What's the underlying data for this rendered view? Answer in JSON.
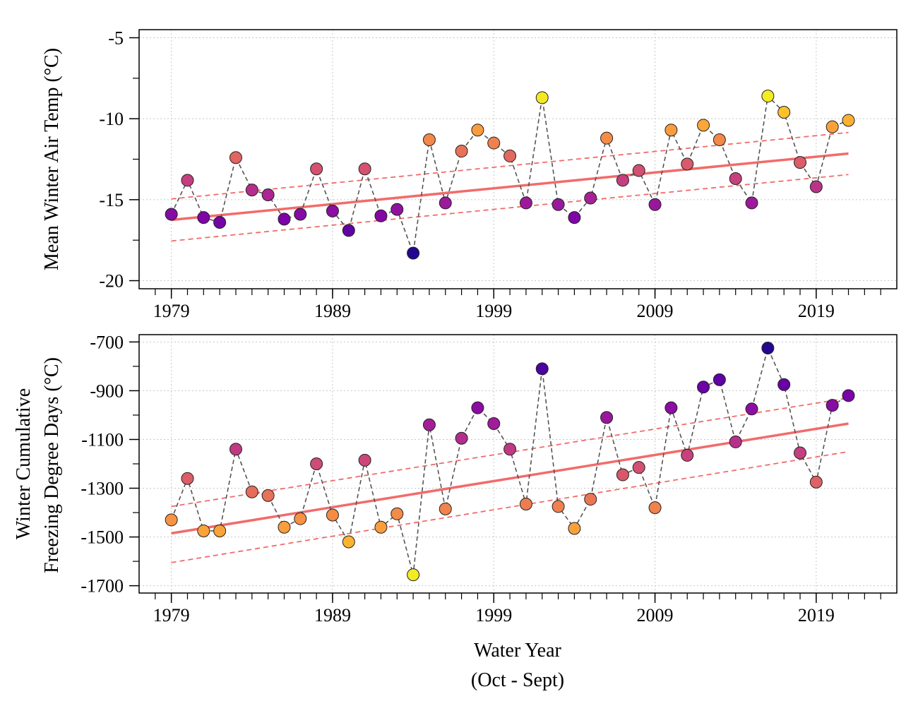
{
  "chart_data": [
    {
      "type": "scatter",
      "title": "",
      "xlabel": "",
      "ylabel": "Mean Winter Air Temp (°C)",
      "xlim": [
        1977,
        2024
      ],
      "ylim": [
        -20.5,
        -4.5
      ],
      "x_ticks": [
        1979,
        1989,
        1999,
        2009,
        2019
      ],
      "y_ticks": [
        -20,
        -15,
        -10,
        -5
      ],
      "grid": true,
      "x": [
        1979,
        1980,
        1981,
        1982,
        1983,
        1984,
        1985,
        1986,
        1987,
        1988,
        1989,
        1990,
        1991,
        1992,
        1993,
        1994,
        1995,
        1996,
        1997,
        1998,
        1999,
        2000,
        2001,
        2002,
        2003,
        2004,
        2005,
        2006,
        2007,
        2008,
        2009,
        2010,
        2011,
        2012,
        2013,
        2014,
        2015,
        2016,
        2017,
        2018,
        2019,
        2020,
        2021
      ],
      "y": [
        -15.9,
        -13.8,
        -16.1,
        -16.4,
        -12.4,
        -14.4,
        -14.7,
        -16.2,
        -15.9,
        -13.1,
        -15.7,
        -16.9,
        -13.1,
        -16.0,
        -15.6,
        -18.3,
        -11.3,
        -15.2,
        -12.0,
        -10.7,
        -11.5,
        -12.3,
        -15.2,
        -8.7,
        -15.3,
        -16.1,
        -14.9,
        -11.2,
        -13.8,
        -13.2,
        -15.3,
        -10.7,
        -12.8,
        -10.4,
        -11.3,
        -13.7,
        -15.2,
        -8.6,
        -9.6,
        -12.7,
        -14.2,
        -10.5,
        -10.1
      ],
      "connecting_line": {
        "style": "dashed",
        "color": "#555555"
      },
      "trend_line": {
        "color": "#f26b6b",
        "from": [
          1979,
          -16.25
        ],
        "to": [
          2021,
          -12.15
        ]
      },
      "confidence_band": {
        "color": "#f26b6b",
        "style": "dashed",
        "lower": {
          "from": [
            1979,
            -17.55
          ],
          "to": [
            2021,
            -13.45
          ]
        },
        "upper": {
          "from": [
            1979,
            -14.95
          ],
          "to": [
            2021,
            -10.85
          ]
        }
      },
      "color_scale": "plasma"
    },
    {
      "type": "scatter",
      "title": "",
      "xlabel": "Water Year",
      "xlabel_sub": "(Oct - Sept)",
      "ylabel": "Winter Cumulative",
      "ylabel_sub": "Freezing Degree Days (°C)",
      "xlim": [
        1977,
        2024
      ],
      "ylim": [
        -1730,
        -670
      ],
      "x_ticks": [
        1979,
        1989,
        1999,
        2009,
        2019
      ],
      "y_ticks": [
        -1700,
        -1500,
        -1300,
        -1100,
        -900,
        -700
      ],
      "grid": true,
      "x": [
        1979,
        1980,
        1981,
        1982,
        1983,
        1984,
        1985,
        1986,
        1987,
        1988,
        1989,
        1990,
        1991,
        1992,
        1993,
        1994,
        1995,
        1996,
        1997,
        1998,
        1999,
        2000,
        2001,
        2002,
        2003,
        2004,
        2005,
        2006,
        2007,
        2008,
        2009,
        2010,
        2011,
        2012,
        2013,
        2014,
        2015,
        2016,
        2017,
        2018,
        2019,
        2020,
        2021
      ],
      "y": [
        -1430,
        -1260,
        -1475,
        -1475,
        -1140,
        -1315,
        -1330,
        -1460,
        -1425,
        -1200,
        -1410,
        -1520,
        -1185,
        -1460,
        -1405,
        -1655,
        -1040,
        -1385,
        -1095,
        -970,
        -1035,
        -1140,
        -1365,
        -810,
        -1375,
        -1465,
        -1345,
        -1010,
        -1245,
        -1215,
        -1380,
        -970,
        -1165,
        -885,
        -855,
        -1110,
        -975,
        -725,
        -875,
        -1155,
        -1275,
        -960,
        -920
      ],
      "connecting_line": {
        "style": "dashed",
        "color": "#555555"
      },
      "trend_line": {
        "color": "#f26b6b",
        "from": [
          1979,
          -1485
        ],
        "to": [
          2021,
          -1035
        ]
      },
      "confidence_band": {
        "color": "#f26b6b",
        "style": "dashed",
        "lower": {
          "from": [
            1979,
            -1605
          ],
          "to": [
            2021,
            -1150
          ]
        },
        "upper": {
          "from": [
            1979,
            -1375
          ],
          "to": [
            2021,
            -930
          ]
        }
      },
      "color_scale": "plasma"
    }
  ]
}
